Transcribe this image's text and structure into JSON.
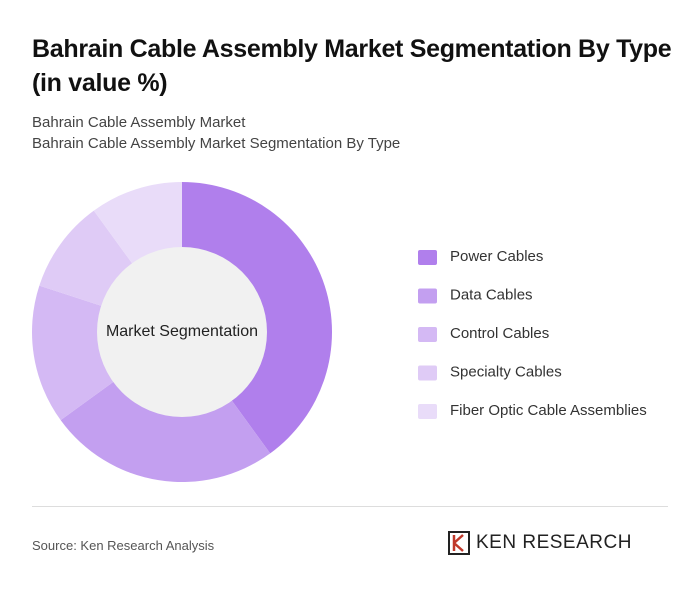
{
  "chart_data": {
    "type": "donut",
    "title": "Bahrain Cable Assembly Market Segmentation By Type (in value %)",
    "subtitle": "Bahrain Cable Assembly Market",
    "subtitle2": "Bahrain Cable Assembly Market Segmentation By Type",
    "center_label": "Market Segmentation",
    "categories": [
      "Power Cables",
      "Data Cables",
      "Control Cables",
      "Specialty Cables",
      "Fiber Optic Cable Assemblies"
    ],
    "values": [
      40,
      25,
      15,
      10,
      10
    ],
    "colors": [
      "#b07fec",
      "#c39ff0",
      "#d4b9f4",
      "#dfcbf6",
      "#e9dcf9"
    ],
    "source": "Source: Ken Research Analysis"
  },
  "brand": "KEN RESEARCH"
}
